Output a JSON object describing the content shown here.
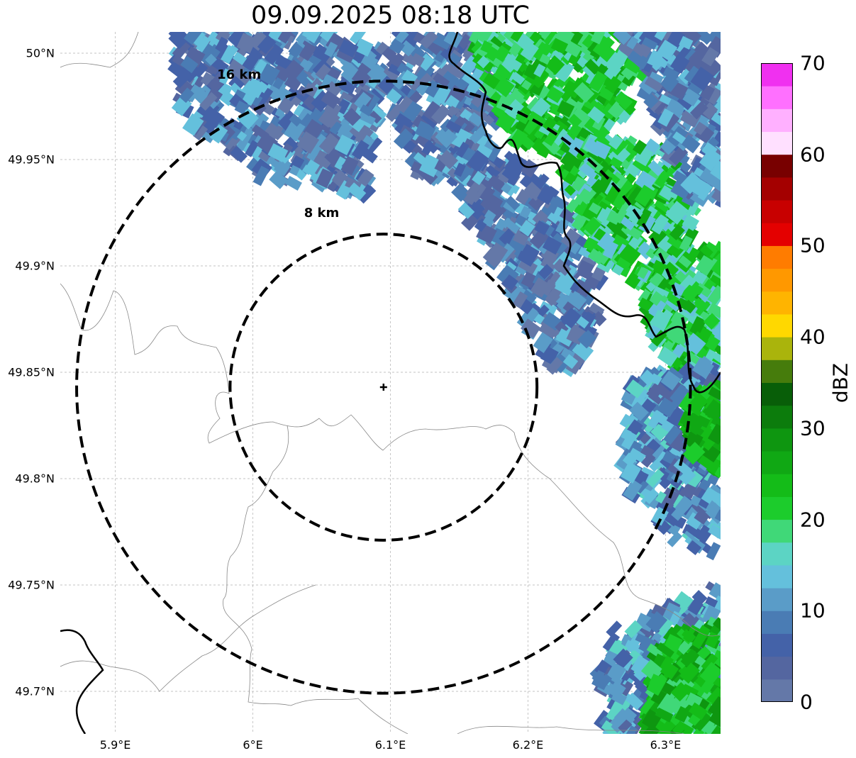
{
  "title": "09.09.2025 08:18 UTC",
  "map": {
    "lon_range": [
      5.86,
      6.34
    ],
    "lat_range": [
      49.68,
      50.01
    ],
    "center": {
      "lon": 6.095,
      "lat": 49.843
    },
    "lat_ticks": [
      {
        "value": 50.0,
        "label": "50°N"
      },
      {
        "value": 49.95,
        "label": "49.95°N"
      },
      {
        "value": 49.9,
        "label": "49.9°N"
      },
      {
        "value": 49.85,
        "label": "49.85°N"
      },
      {
        "value": 49.8,
        "label": "49.8°N"
      },
      {
        "value": 49.75,
        "label": "49.75°N"
      },
      {
        "value": 49.7,
        "label": "49.7°N"
      }
    ],
    "lon_ticks": [
      {
        "value": 5.9,
        "label": "5.9°E"
      },
      {
        "value": 6.0,
        "label": "6°E"
      },
      {
        "value": 6.1,
        "label": "6.1°E"
      },
      {
        "value": 6.2,
        "label": "6.2°E"
      },
      {
        "value": 6.3,
        "label": "6.3°E"
      }
    ],
    "range_rings": [
      {
        "km": 16,
        "label": "16 km",
        "label_lon": 5.99,
        "label_lat": 49.988
      },
      {
        "km": 8,
        "label": "8 km",
        "label_lon": 6.05,
        "label_lat": 49.923
      }
    ],
    "gridlines": true,
    "gridline_color": "#b0b0b0"
  },
  "colorbar": {
    "label": "dBZ",
    "min": 0,
    "max": 70,
    "step": 2.5,
    "ticks": [
      "0",
      "10",
      "20",
      "30",
      "40",
      "50",
      "60",
      "70"
    ],
    "colors": [
      "#6478a8",
      "#5466a0",
      "#4462a8",
      "#4a7cb4",
      "#5a9cc8",
      "#64c0dc",
      "#5cd4c4",
      "#40d878",
      "#1ccc2c",
      "#14bc18",
      "#10a814",
      "#0e9610",
      "#0c7c0c",
      "#085e08",
      "#467c0c",
      "#aab40c",
      "#ffd800",
      "#ffb400",
      "#ff9800",
      "#ff7c00",
      "#e40000",
      "#c80000",
      "#a40000",
      "#780000",
      "#ffe0ff",
      "#ffb0ff",
      "#ff70ff",
      "#f030f0"
    ]
  }
}
